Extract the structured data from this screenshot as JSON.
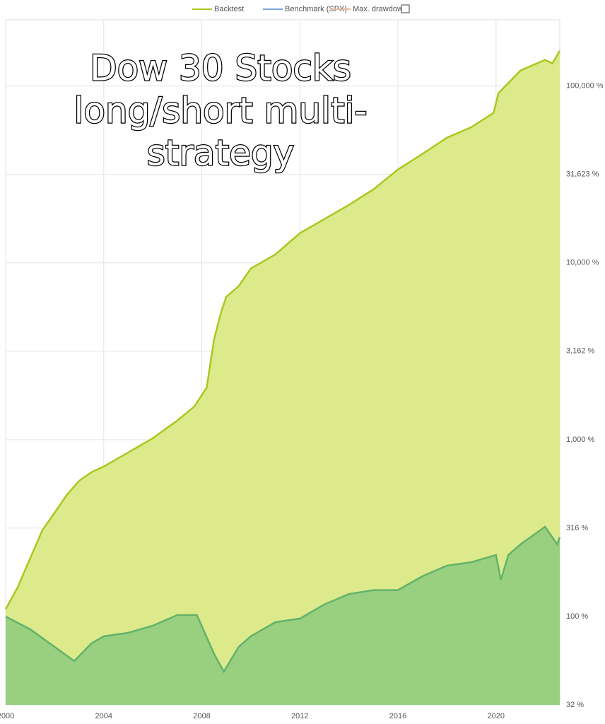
{
  "chart_data": {
    "type": "area",
    "title_lines": [
      "Dow 30 Stocks",
      "long/short multi-",
      "strategy"
    ],
    "log_y": true,
    "grid": true,
    "legend_position": "top",
    "xlim": [
      2000,
      2022.6
    ],
    "xticks": [
      2000,
      2004,
      2008,
      2012,
      2016,
      2020
    ],
    "ylim": [
      31.623,
      237000
    ],
    "yticks": [
      {
        "value": 31.623,
        "label": "32 %"
      },
      {
        "value": 100,
        "label": "100 %"
      },
      {
        "value": 316.23,
        "label": "316 %"
      },
      {
        "value": 1000,
        "label": "1,000 %"
      },
      {
        "value": 3162.3,
        "label": "3,162 %"
      },
      {
        "value": 10000,
        "label": "10,000 %"
      },
      {
        "value": 31623,
        "label": "31,623 %"
      },
      {
        "value": 100000,
        "label": "100,000 %"
      }
    ],
    "series": [
      {
        "name": "Backtest",
        "color": "#a8c81e",
        "fill": "#dcea8c",
        "x": [
          2000,
          2000.5,
          2001,
          2001.5,
          2002,
          2002.5,
          2003,
          2003.5,
          2004,
          2005,
          2006,
          2007,
          2007.7,
          2008.2,
          2008.5,
          2008.8,
          2009,
          2009.5,
          2010,
          2011,
          2012,
          2013,
          2014,
          2015,
          2016,
          2017,
          2018,
          2019,
          2019.9,
          2020.1,
          2021,
          2022,
          2022.3,
          2022.6
        ],
        "values": [
          110,
          147,
          213,
          308,
          387,
          488,
          586,
          655,
          705,
          847,
          1019,
          1282,
          1542,
          1977,
          3698,
          5346,
          6427,
          7379,
          9290,
          11168,
          14723,
          17700,
          21280,
          26060,
          33729,
          41305,
          51050,
          58600,
          70470,
          91200,
          122500,
          140600,
          134300,
          158500
        ]
      },
      {
        "name": "Benchmark (SPX)",
        "color": "#7aa6d8",
        "line": "#62b26a",
        "fill": "#98d07f",
        "x": [
          2000,
          2001,
          2002,
          2002.8,
          2003.5,
          2004,
          2005,
          2006,
          2007,
          2007.8,
          2008.5,
          2008.9,
          2009.5,
          2010,
          2011,
          2012,
          2013,
          2014,
          2015,
          2016,
          2017,
          2018,
          2019,
          2020,
          2020.2,
          2020.5,
          2021,
          2022,
          2022.5,
          2022.6
        ],
        "values": [
          100,
          84.7,
          67.3,
          56,
          70.5,
          77.3,
          80.9,
          88.7,
          101.9,
          101.9,
          61.4,
          48.8,
          67.3,
          77.3,
          92.9,
          97.3,
          117,
          134,
          141,
          141,
          169,
          194,
          203,
          223,
          161,
          223,
          256,
          322,
          256,
          281
        ]
      },
      {
        "name": "Max. drawdown",
        "color": "#e2b79c",
        "x": [],
        "values": []
      }
    ]
  }
}
